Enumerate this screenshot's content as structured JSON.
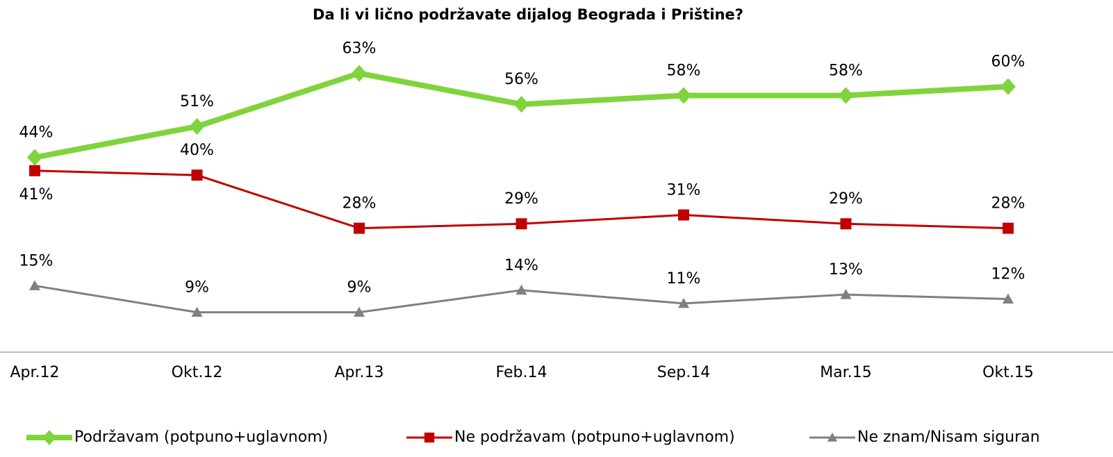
{
  "chart_data": {
    "type": "line",
    "title": "Da li vi lično podržavate dijalog Beograda i Prištine?",
    "categories": [
      "Apr.12",
      "Okt.12",
      "Apr.13",
      "Feb.14",
      "Sep.14",
      "Mar.15",
      "Okt.15"
    ],
    "ylim": [
      0,
      70
    ],
    "series": [
      {
        "name": "Podržavam (potpuno+uglavnom)",
        "color": "#7fd43b",
        "marker": "diamond",
        "values": [
          44,
          51,
          63,
          56,
          58,
          58,
          60
        ],
        "value_labels": [
          "44%",
          "51%",
          "63%",
          "56%",
          "58%",
          "58%",
          "60%"
        ]
      },
      {
        "name": "Ne podržavam (potpuno+uglavnom)",
        "color": "#c00000",
        "marker": "square",
        "values": [
          41,
          40,
          28,
          29,
          31,
          29,
          28
        ],
        "value_labels": [
          "41%",
          "40%",
          "28%",
          "29%",
          "31%",
          "29%",
          "28%"
        ]
      },
      {
        "name": "Ne znam/Nisam siguran",
        "color": "#808080",
        "marker": "triangle",
        "values": [
          15,
          9,
          9,
          14,
          11,
          13,
          12
        ],
        "value_labels": [
          "15%",
          "9%",
          "9%",
          "14%",
          "11%",
          "13%",
          "12%"
        ]
      }
    ]
  }
}
